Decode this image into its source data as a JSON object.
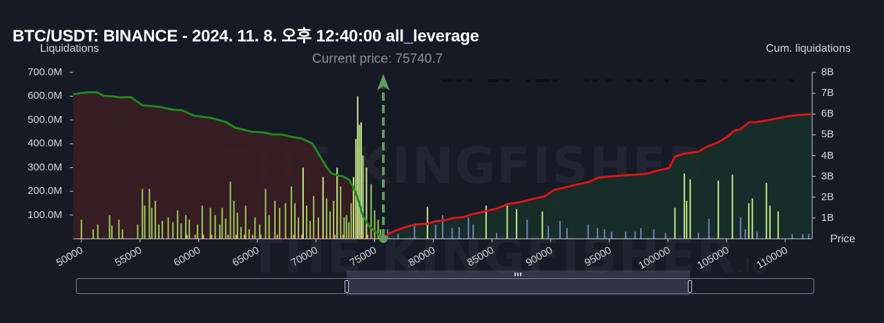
{
  "title": "BTC/USDT: BINANCE - 2024. 11. 8. 오후 12:40:00 all_leverage",
  "current_price_label": "Current price: 75740.7",
  "watermark": {
    "main": "THE KINGFISHER",
    "suffix": ".IO"
  },
  "chart_data": {
    "type": "bar",
    "xlabel": "Price",
    "ylabel_left": "Liquidations",
    "ylabel_right": "Cum. liquidations",
    "xlim": [
      49300,
      112300
    ],
    "ylim_left": [
      0,
      700000000
    ],
    "ylim_right": [
      0,
      8000000000
    ],
    "x_ticks": [
      "50000",
      "55000",
      "60000",
      "65000",
      "70000",
      "75000",
      "80000",
      "85000",
      "90000",
      "95000",
      "100000",
      "105000",
      "110000"
    ],
    "y_left_ticks": [
      "100.0M",
      "200.0M",
      "300.0M",
      "400.0M",
      "500.0M",
      "600.0M",
      "700.0M"
    ],
    "y_right_ticks": [
      "1B",
      "2B",
      "3B",
      "4B",
      "5B",
      "6B",
      "7B",
      "8B"
    ],
    "current_price": 75740.7,
    "colors": {
      "long_cum": "#1f8a1f",
      "short_cum": "#e01515",
      "long_fill": "#3a1d24",
      "short_fill": "#16302a",
      "bar_strong": "#c8ec8a",
      "bar_mid": "#9acd5a",
      "bar_orange": "#f4a050",
      "bar_blue": "#6f86c4",
      "price_marker": "#5f9e5f"
    },
    "bars": [
      [
        50000,
        80
      ],
      [
        51000,
        40
      ],
      [
        51400,
        60
      ],
      [
        52400,
        100
      ],
      [
        52600,
        55
      ],
      [
        53200,
        80
      ],
      [
        53500,
        40
      ],
      [
        54800,
        60
      ],
      [
        55200,
        210
      ],
      [
        55400,
        140
      ],
      [
        55800,
        210
      ],
      [
        56000,
        130
      ],
      [
        56300,
        160
      ],
      [
        56600,
        60
      ],
      [
        56900,
        75
      ],
      [
        57400,
        90
      ],
      [
        57800,
        70
      ],
      [
        58200,
        120
      ],
      [
        58500,
        65
      ],
      [
        58900,
        100
      ],
      [
        59200,
        80
      ],
      [
        59900,
        60
      ],
      [
        60300,
        140
      ],
      [
        61000,
        130
      ],
      [
        61400,
        100
      ],
      [
        61800,
        60
      ],
      [
        62000,
        130
      ],
      [
        62300,
        85
      ],
      [
        62700,
        240
      ],
      [
        63000,
        160
      ],
      [
        63300,
        110
      ],
      [
        63600,
        50
      ],
      [
        64000,
        140
      ],
      [
        64300,
        40
      ],
      [
        64800,
        90
      ],
      [
        65200,
        60
      ],
      [
        65700,
        210
      ],
      [
        66000,
        100
      ],
      [
        66500,
        160
      ],
      [
        66900,
        130
      ],
      [
        67400,
        150
      ],
      [
        67900,
        220
      ],
      [
        68200,
        150
      ],
      [
        68500,
        90
      ],
      [
        68900,
        300
      ],
      [
        69200,
        140
      ],
      [
        69500,
        75
      ],
      [
        69800,
        180
      ],
      [
        70200,
        90
      ],
      [
        70600,
        260
      ],
      [
        70900,
        170
      ],
      [
        71200,
        115
      ],
      [
        71500,
        160
      ],
      [
        71800,
        300
      ],
      [
        72100,
        220
      ],
      [
        72400,
        90
      ],
      [
        72600,
        100
      ],
      [
        72800,
        70
      ],
      [
        73000,
        150
      ],
      [
        73200,
        260
      ],
      [
        73400,
        420
      ],
      [
        73550,
        600
      ],
      [
        73700,
        480
      ],
      [
        73850,
        490
      ],
      [
        74000,
        350
      ],
      [
        74300,
        300
      ],
      [
        74700,
        230
      ],
      [
        75000,
        120
      ],
      [
        75300,
        80
      ],
      [
        75500,
        40
      ],
      [
        76100,
        40
      ],
      [
        77000,
        20
      ],
      [
        78400,
        60
      ],
      [
        79500,
        135
      ],
      [
        80200,
        60
      ],
      [
        80800,
        100
      ],
      [
        81600,
        45
      ],
      [
        82200,
        50
      ],
      [
        83000,
        90
      ],
      [
        83400,
        60
      ],
      [
        84500,
        140
      ],
      [
        85400,
        25
      ],
      [
        86300,
        140
      ],
      [
        87100,
        125
      ],
      [
        88000,
        80
      ],
      [
        89300,
        115
      ],
      [
        89800,
        55
      ],
      [
        90800,
        75
      ],
      [
        91400,
        45
      ],
      [
        93200,
        60
      ],
      [
        94000,
        45
      ],
      [
        94600,
        40
      ],
      [
        95200,
        30
      ],
      [
        96400,
        30
      ],
      [
        97200,
        30
      ],
      [
        97700,
        45
      ],
      [
        98800,
        40
      ],
      [
        99800,
        25
      ],
      [
        100600,
        130
      ],
      [
        101400,
        275
      ],
      [
        101600,
        160
      ],
      [
        101900,
        250
      ],
      [
        102600,
        25
      ],
      [
        103500,
        85
      ],
      [
        104300,
        245
      ],
      [
        105500,
        270
      ],
      [
        106200,
        90
      ],
      [
        106600,
        40
      ],
      [
        106900,
        150
      ],
      [
        107200,
        170
      ],
      [
        107600,
        30
      ],
      [
        108400,
        235
      ],
      [
        108700,
        140
      ],
      [
        109400,
        115
      ],
      [
        110600,
        20
      ],
      [
        111500,
        20
      ],
      [
        112000,
        20
      ]
    ],
    "long_cum_points": [
      [
        49300,
        6.95
      ],
      [
        50500,
        7.05
      ],
      [
        51300,
        7.05
      ],
      [
        51900,
        6.88
      ],
      [
        52700,
        6.85
      ],
      [
        53300,
        6.8
      ],
      [
        54200,
        6.82
      ],
      [
        55200,
        6.42
      ],
      [
        56600,
        6.35
      ],
      [
        57900,
        6.2
      ],
      [
        58600,
        6.18
      ],
      [
        59600,
        5.92
      ],
      [
        61000,
        5.82
      ],
      [
        62300,
        5.62
      ],
      [
        63100,
        5.35
      ],
      [
        64500,
        5.15
      ],
      [
        65500,
        5.12
      ],
      [
        66300,
        5.02
      ],
      [
        67000,
        5.02
      ],
      [
        67800,
        4.92
      ],
      [
        68800,
        4.82
      ],
      [
        69700,
        4.58
      ],
      [
        70800,
        3.52
      ],
      [
        71300,
        3.15
      ],
      [
        71900,
        3.05
      ],
      [
        72300,
        3.0
      ],
      [
        72800,
        2.85
      ],
      [
        73100,
        2.56
      ],
      [
        73400,
        2.2
      ],
      [
        73700,
        1.7
      ],
      [
        74000,
        1.1
      ],
      [
        74500,
        0.62
      ],
      [
        75000,
        0.38
      ],
      [
        75500,
        0.12
      ],
      [
        75740,
        0
      ]
    ],
    "short_cum_points": [
      [
        75740,
        0
      ],
      [
        76300,
        0.28
      ],
      [
        77200,
        0.48
      ],
      [
        78000,
        0.62
      ],
      [
        78600,
        0.7
      ],
      [
        79500,
        0.72
      ],
      [
        80200,
        0.84
      ],
      [
        81000,
        0.9
      ],
      [
        81700,
        1.0
      ],
      [
        82600,
        1.05
      ],
      [
        83300,
        1.18
      ],
      [
        84400,
        1.32
      ],
      [
        85400,
        1.45
      ],
      [
        86400,
        1.68
      ],
      [
        87300,
        1.75
      ],
      [
        88400,
        1.9
      ],
      [
        89500,
        2.05
      ],
      [
        90300,
        2.35
      ],
      [
        91300,
        2.48
      ],
      [
        92300,
        2.62
      ],
      [
        93200,
        2.72
      ],
      [
        94100,
        2.95
      ],
      [
        95100,
        3.0
      ],
      [
        96100,
        3.05
      ],
      [
        97100,
        3.08
      ],
      [
        98100,
        3.12
      ],
      [
        99100,
        3.28
      ],
      [
        100100,
        3.4
      ],
      [
        100600,
        3.95
      ],
      [
        101400,
        4.1
      ],
      [
        102600,
        4.18
      ],
      [
        103200,
        4.4
      ],
      [
        104200,
        4.62
      ],
      [
        105100,
        4.92
      ],
      [
        105600,
        5.18
      ],
      [
        106200,
        5.28
      ],
      [
        106900,
        5.6
      ],
      [
        107600,
        5.62
      ],
      [
        108500,
        5.7
      ],
      [
        109400,
        5.8
      ],
      [
        110300,
        5.9
      ],
      [
        111000,
        5.95
      ],
      [
        112200,
        6.0
      ]
    ]
  },
  "slider": {
    "grip_icon": "drag-grip-icon"
  }
}
